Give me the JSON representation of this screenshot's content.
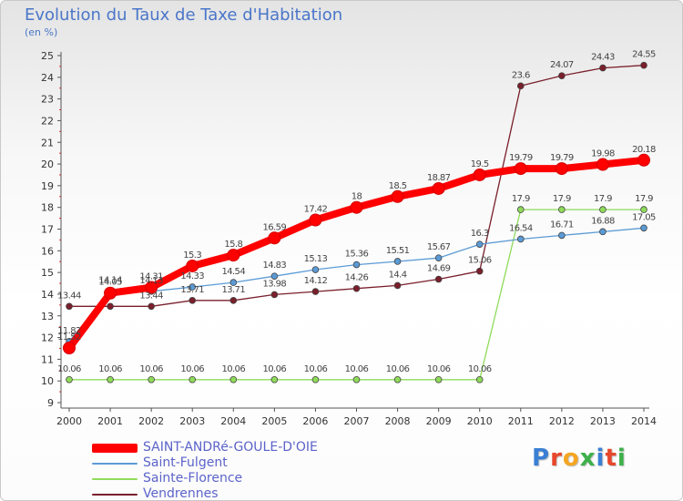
{
  "title": "Evolution du Taux de Taxe d'Habitation",
  "unit": "(en %)",
  "logo": {
    "text": "Proxiti",
    "letter_colors": [
      "#3a7fd4",
      "#e8472c",
      "#f4a622",
      "#3db04a",
      "#3a7fd4",
      "#e8472c",
      "#3db04a"
    ]
  },
  "chart_data": {
    "type": "line",
    "title": "Evolution du Taux de Taxe d'Habitation",
    "ylabel": "(en %)",
    "ylim": [
      9,
      25
    ],
    "yticks": [
      "9",
      "10",
      "11",
      "12",
      "13",
      "14",
      "15",
      "16",
      "17",
      "18",
      "19",
      "20",
      "21",
      "22",
      "23",
      "24",
      "25"
    ],
    "grid": false,
    "legend_position": "bottom-left",
    "x": [
      "2000",
      "2001",
      "2002",
      "2003",
      "2004",
      "2005",
      "2006",
      "2007",
      "2008",
      "2009",
      "2010",
      "2011",
      "2012",
      "2013",
      "2014"
    ],
    "series": [
      {
        "name": "SAINT-ANDRé-GOULE-D'OIE",
        "color": "#ff0000",
        "emphasis": "thick",
        "values": [
          11.52,
          14.05,
          14.31,
          15.3,
          15.8,
          16.59,
          17.42,
          18,
          18.5,
          18.87,
          19.5,
          19.79,
          19.79,
          19.98,
          20.18
        ],
        "labels": [
          "11.52",
          "14.05",
          "14.31",
          "15.3",
          "15.8",
          "16.59",
          "17.42",
          "18",
          "18.5",
          "18.87",
          "19.5",
          "19.79",
          "19.79",
          "19.98",
          "20.18"
        ]
      },
      {
        "name": "Saint-Fulgent",
        "color": "#5b9bd5",
        "values": [
          11.82,
          14.14,
          14.13,
          14.33,
          14.54,
          14.83,
          15.13,
          15.36,
          15.51,
          15.67,
          16.3,
          16.54,
          16.71,
          16.88,
          17.05
        ],
        "labels": [
          "11.82",
          "14.14",
          "14.13",
          "14.33",
          "14.54",
          "14.83",
          "15.13",
          "15.36",
          "15.51",
          "15.67",
          "16.3",
          "16.54",
          "16.71",
          "16.88",
          "17.05"
        ]
      },
      {
        "name": "Sainte-Florence",
        "color": "#8fdb5a",
        "values": [
          10.06,
          10.06,
          10.06,
          10.06,
          10.06,
          10.06,
          10.06,
          10.06,
          10.06,
          10.06,
          10.06,
          17.9,
          17.9,
          17.9,
          17.9
        ],
        "labels": [
          "10.06",
          "10.06",
          "10.06",
          "10.06",
          "10.06",
          "10.06",
          "10.06",
          "10.06",
          "10.06",
          "10.06",
          "10.06",
          "17.9",
          "17.9",
          "17.9",
          "17.9"
        ]
      },
      {
        "name": "Vendrennes",
        "color": "#7a1f2b",
        "values": [
          13.44,
          13.44,
          13.44,
          13.71,
          13.71,
          13.98,
          14.12,
          14.26,
          14.4,
          14.69,
          15.06,
          23.6,
          24.07,
          24.43,
          24.55
        ],
        "labels": [
          "13.44",
          "",
          "13.44",
          "13.71",
          "13.71",
          "13.98",
          "14.12",
          "14.26",
          "14.4",
          "14.69",
          "15.06",
          "23.6",
          "24.07",
          "24.43",
          "24.55"
        ]
      }
    ]
  }
}
